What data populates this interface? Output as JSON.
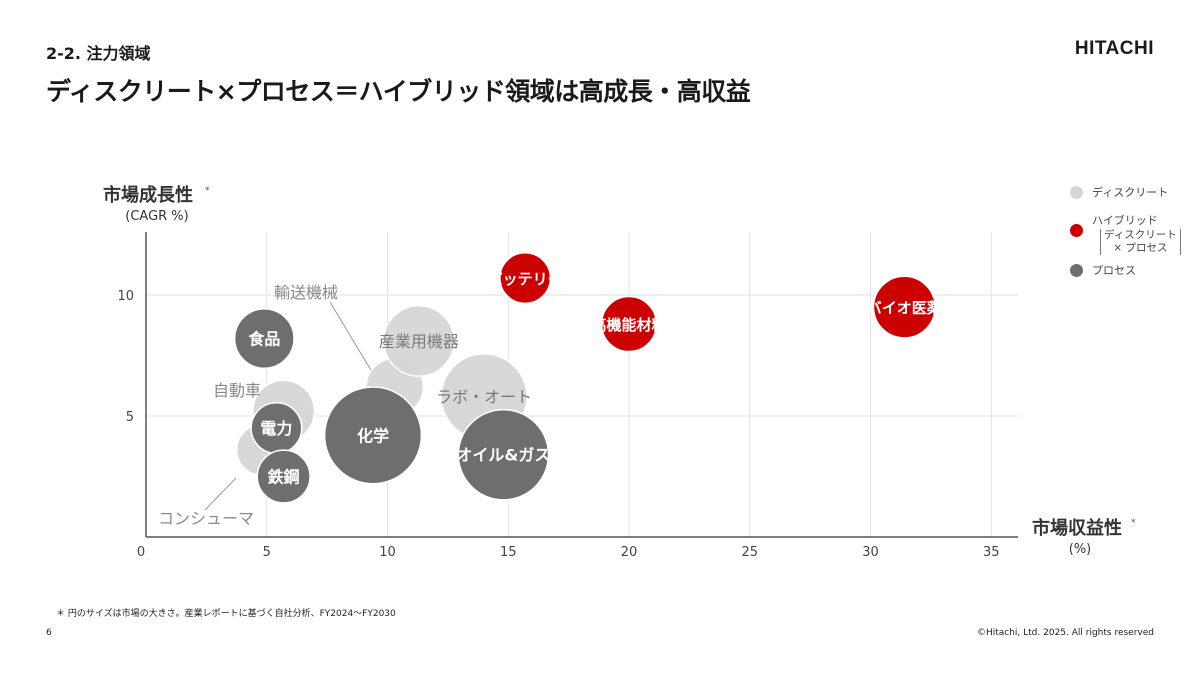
{
  "header": {
    "section": "2-2. 注力領域",
    "title": "ディスクリート×プロセス＝ハイブリッド領域は高成長・高収益",
    "logo": "HITACHI"
  },
  "footer": {
    "footnote": "＊ 円のサイズは市場の大きさ。産業レポートに基づく自社分析、FY2024～FY2030",
    "page_number": "6",
    "copyright": "©Hitachi, Ltd. 2025. All rights reserved"
  },
  "legend": {
    "items": [
      {
        "label": "ディスクリート",
        "color": "#d6d6d6"
      },
      {
        "label": "ハイブリッド",
        "note_line1": "ディスクリート",
        "note_line2": "× プロセス",
        "color": "#cc0000"
      },
      {
        "label": "プロセス",
        "color": "#6e6e6e"
      }
    ]
  },
  "chart_data": {
    "type": "scatter",
    "subtype": "bubble",
    "xlabel": "市場収益性",
    "xlabel_unit": "(%)",
    "ylabel": "市場成長性",
    "ylabel_unit": "(CAGR %)",
    "xlim": [
      0,
      36
    ],
    "ylim": [
      0,
      12.5
    ],
    "xticks": [
      0,
      5,
      10,
      15,
      20,
      25,
      30,
      35
    ],
    "yticks": [
      5,
      10
    ],
    "grid": true,
    "legend_position": "right",
    "colors": {
      "discrete": "#d6d6d6",
      "hybrid": "#cc0000",
      "process": "#6e6e6e"
    },
    "series": [
      {
        "name": "ディスクリート",
        "points": [
          {
            "label": "輸送機械",
            "x": 10.3,
            "y": 6.2,
            "size": 1.3
          },
          {
            "label": "産業用機器",
            "x": 11.3,
            "y": 8.1,
            "size": 1.6
          },
          {
            "label": "ラボ・オート",
            "x": 14.0,
            "y": 5.8,
            "size": 1.95
          },
          {
            "label": "自動車",
            "x": 5.7,
            "y": 5.2,
            "size": 1.4
          },
          {
            "label": "コンシューマ",
            "x": 4.8,
            "y": 3.6,
            "size": 1.15
          }
        ]
      },
      {
        "name": "ハイブリッド",
        "points": [
          {
            "label": "バッテリー",
            "x": 15.7,
            "y": 10.7,
            "size": 1.15
          },
          {
            "label": "高機能材料",
            "x": 20.0,
            "y": 8.8,
            "size": 1.25
          },
          {
            "label": "バイオ医薬",
            "x": 31.4,
            "y": 9.5,
            "size": 1.4
          }
        ]
      },
      {
        "name": "プロセス",
        "points": [
          {
            "label": "食品",
            "x": 4.9,
            "y": 8.2,
            "size": 1.35
          },
          {
            "label": "電力",
            "x": 5.4,
            "y": 4.5,
            "size": 1.15
          },
          {
            "label": "鉄鋼",
            "x": 5.7,
            "y": 2.5,
            "size": 1.2
          },
          {
            "label": "化学",
            "x": 9.4,
            "y": 4.2,
            "size": 2.2
          },
          {
            "label": "オイル&ガス",
            "x": 14.8,
            "y": 3.4,
            "size": 2.05
          }
        ]
      }
    ]
  }
}
